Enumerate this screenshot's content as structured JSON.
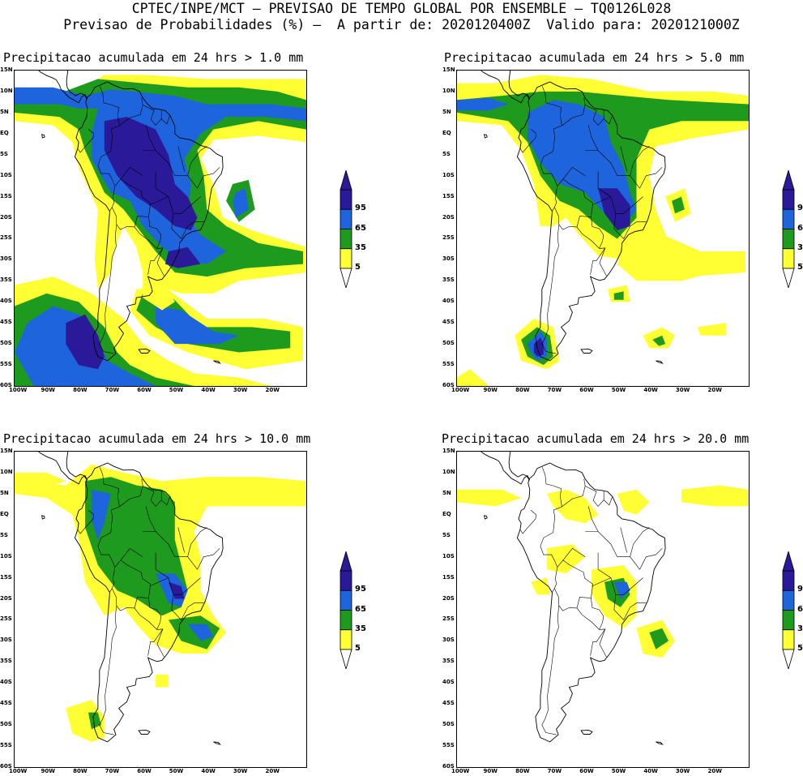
{
  "header": {
    "line1": "CPTEC/INPE/MCT – PREVISAO DE TEMPO GLOBAL POR ENSEMBLE – TQ0126L028",
    "line2": "Previsao de Probabilidades (%) –  A partir de: 2020120400Z  Valido para: 2020121000Z"
  },
  "panels": [
    {
      "title": "Precipitacao acumulada em 24 hrs > 1.0 mm"
    },
    {
      "title": "Precipitacao acumulada em 24 hrs > 5.0 mm"
    },
    {
      "title": "Precipitacao acumulada em 24 hrs > 10.0 mm"
    },
    {
      "title": "Precipitacao acumulada em 24 hrs > 20.0 mm"
    }
  ],
  "lat_labels": [
    "15N",
    "10N",
    "5N",
    "EQ",
    "5S",
    "10S",
    "15S",
    "20S",
    "25S",
    "30S",
    "35S",
    "40S",
    "45S",
    "50S",
    "55S",
    "60S"
  ],
  "lon_labels": [
    "100W",
    "90W",
    "80W",
    "70W",
    "60W",
    "50W",
    "40W",
    "30W",
    "20W"
  ],
  "legend": {
    "labels": [
      "95",
      "65",
      "35",
      "5"
    ],
    "colors": {
      "c5": "#ffff33",
      "c35": "#1e9a1e",
      "c65": "#1e64dc",
      "c95": "#2a1a9a"
    }
  }
}
